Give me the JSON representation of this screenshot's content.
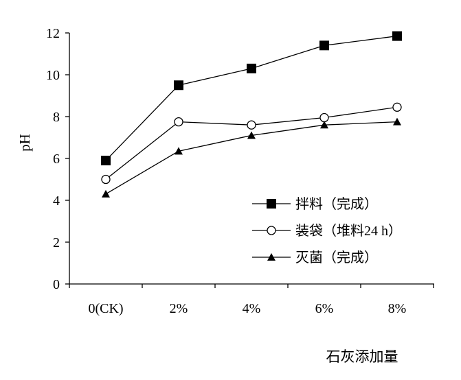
{
  "chart_data": {
    "type": "line",
    "categories": [
      "0(CK)",
      "2%",
      "4%",
      "6%",
      "8%"
    ],
    "series": [
      {
        "name": "拌料（完成）",
        "marker": "filled-square",
        "values": [
          5.9,
          9.5,
          10.3,
          11.4,
          11.85
        ]
      },
      {
        "name": "装袋（堆料24 h）",
        "marker": "open-circle",
        "values": [
          5.0,
          7.75,
          7.6,
          7.95,
          8.45
        ]
      },
      {
        "name": "灭菌（完成）",
        "marker": "filled-triangle",
        "values": [
          4.3,
          6.35,
          7.1,
          7.6,
          7.75
        ]
      }
    ],
    "xlabel": "石灰添加量",
    "ylabel": "pH",
    "ylim": [
      0,
      12
    ],
    "yticks": [
      "0",
      "2",
      "4",
      "6",
      "8",
      "10",
      "12"
    ],
    "grid": false,
    "legend_position": "lower-right",
    "colors": {
      "line": "#000000",
      "background": "#ffffff"
    }
  }
}
